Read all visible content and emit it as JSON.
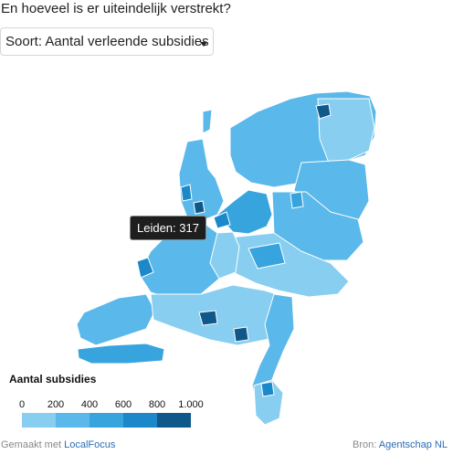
{
  "header": {
    "question": "En hoeveel is er uiteindelijk verstrekt?",
    "select_label": "Soort: Aantal verleende subsidies"
  },
  "tooltip": {
    "text": "Leiden: 317"
  },
  "legend": {
    "title": "Aantal subsidies",
    "ticks": [
      "0",
      "200",
      "400",
      "600",
      "800",
      "1.000"
    ],
    "colors": [
      "#87cef0",
      "#5ab8ea",
      "#38a4de",
      "#1b89c9",
      "#10588a"
    ]
  },
  "map": {
    "fill_colors": [
      "#87cef0",
      "#5ab8ea",
      "#38a4de",
      "#1b89c9",
      "#10588a"
    ],
    "border_color": "#ffffff"
  },
  "footer": {
    "made_with_prefix": "Gemaakt met",
    "made_with_link": "LocalFocus",
    "source_prefix": "Bron:",
    "source_link": "Agentschap NL"
  }
}
